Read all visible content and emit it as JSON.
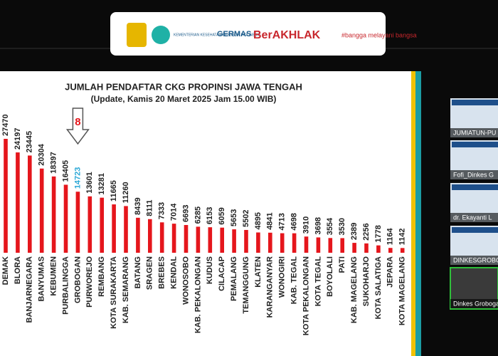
{
  "header": {
    "logos": [
      "KEMENTERIAN KESEHATAN REPUBLIK INDONESIA",
      "GERMAS",
      "BerAKHLAK",
      "#bangga melayani bangsa"
    ]
  },
  "participants": [
    "JUMIATUN-PU",
    "Fofi_Dinkes G",
    "dr. Ekayanti L",
    "DINKESGROBO",
    "Dinkes Grobogan"
  ],
  "chart_data": {
    "type": "bar",
    "title": "JUMLAH PENDAFTAR CKG PROPINSI JAWA TENGAH",
    "subtitle": "(Update, Kamis 20 Maret 2025 Jam 15.00 WIB)",
    "categories": [
      "DEMAK",
      "BLORA",
      "BANJARNEGARA",
      "BANYUMAS",
      "KEBUMEN",
      "PURBALINGGA",
      "GROBOGAN",
      "PURWOREJO",
      "REMBANG",
      "KOTA SURAKARTA",
      "KAB. SEMARANG",
      "BATANG",
      "SRAGEN",
      "BREBES",
      "KENDAL",
      "WONOSOBO",
      "KAB. PEKALONGAN",
      "KUDUS",
      "CILACAP",
      "PEMALANG",
      "TEMANGGUNG",
      "KLATEN",
      "KARANGANYAR",
      "WONOGIRI",
      "KAB. TEGAL",
      "KOTA PEKALONGAN",
      "KOTA TEGAL",
      "BOYOLALI",
      "PATI",
      "KAB. MAGELANG",
      "SUKOHARJO",
      "KOTA SALATIGA",
      "JEPARA",
      "KOTA MAGELANG"
    ],
    "values": [
      27470,
      24197,
      23445,
      20304,
      18397,
      16405,
      14723,
      13601,
      13281,
      11665,
      11260,
      8439,
      8111,
      7333,
      7014,
      6693,
      6285,
      6153,
      6059,
      5653,
      5502,
      4895,
      4841,
      4713,
      4698,
      3910,
      3698,
      3554,
      3530,
      2389,
      2256,
      1778,
      1164,
      1142
    ],
    "color": "#e5161c",
    "annotation": {
      "text": "8",
      "category": "GROBOGAN",
      "color": "#2aa7d6"
    }
  }
}
